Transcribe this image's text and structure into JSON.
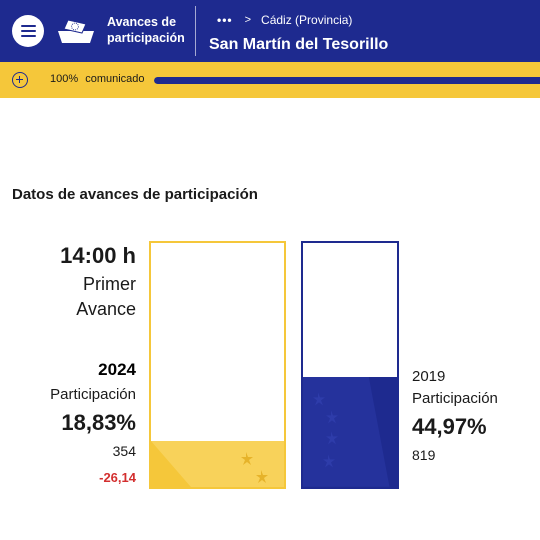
{
  "header": {
    "app_title": "Avances de participación",
    "breadcrumb_more": "•••",
    "breadcrumb_chevron": ">",
    "breadcrumb_parent": "Cádiz (Provincia)",
    "place_title": "San Martín del Tesorillo"
  },
  "status": {
    "percent": "100%",
    "label": "comunicado",
    "progress_fraction": 1.0
  },
  "section": {
    "title": "Datos de avances de participación"
  },
  "advance": {
    "time": "14:00 h",
    "phase": "Primer Avance"
  },
  "current": {
    "year": "2024",
    "label": "Participación",
    "percent_text": "18,83%",
    "percent_value": 18.83,
    "count": "354",
    "difference": "-26,14"
  },
  "previous": {
    "year": "2019",
    "label": "Participación",
    "percent_text": "44,97%",
    "percent_value": 44.97,
    "count": "819"
  },
  "colors": {
    "brand_blue": "#1e2a8f",
    "brand_yellow": "#f5c73a",
    "negative_red": "#d32f2f"
  },
  "icons": {
    "menu": "hamburger-icon",
    "logo": "ballot-box-eu-icon",
    "expand": "plus-circle-icon"
  }
}
